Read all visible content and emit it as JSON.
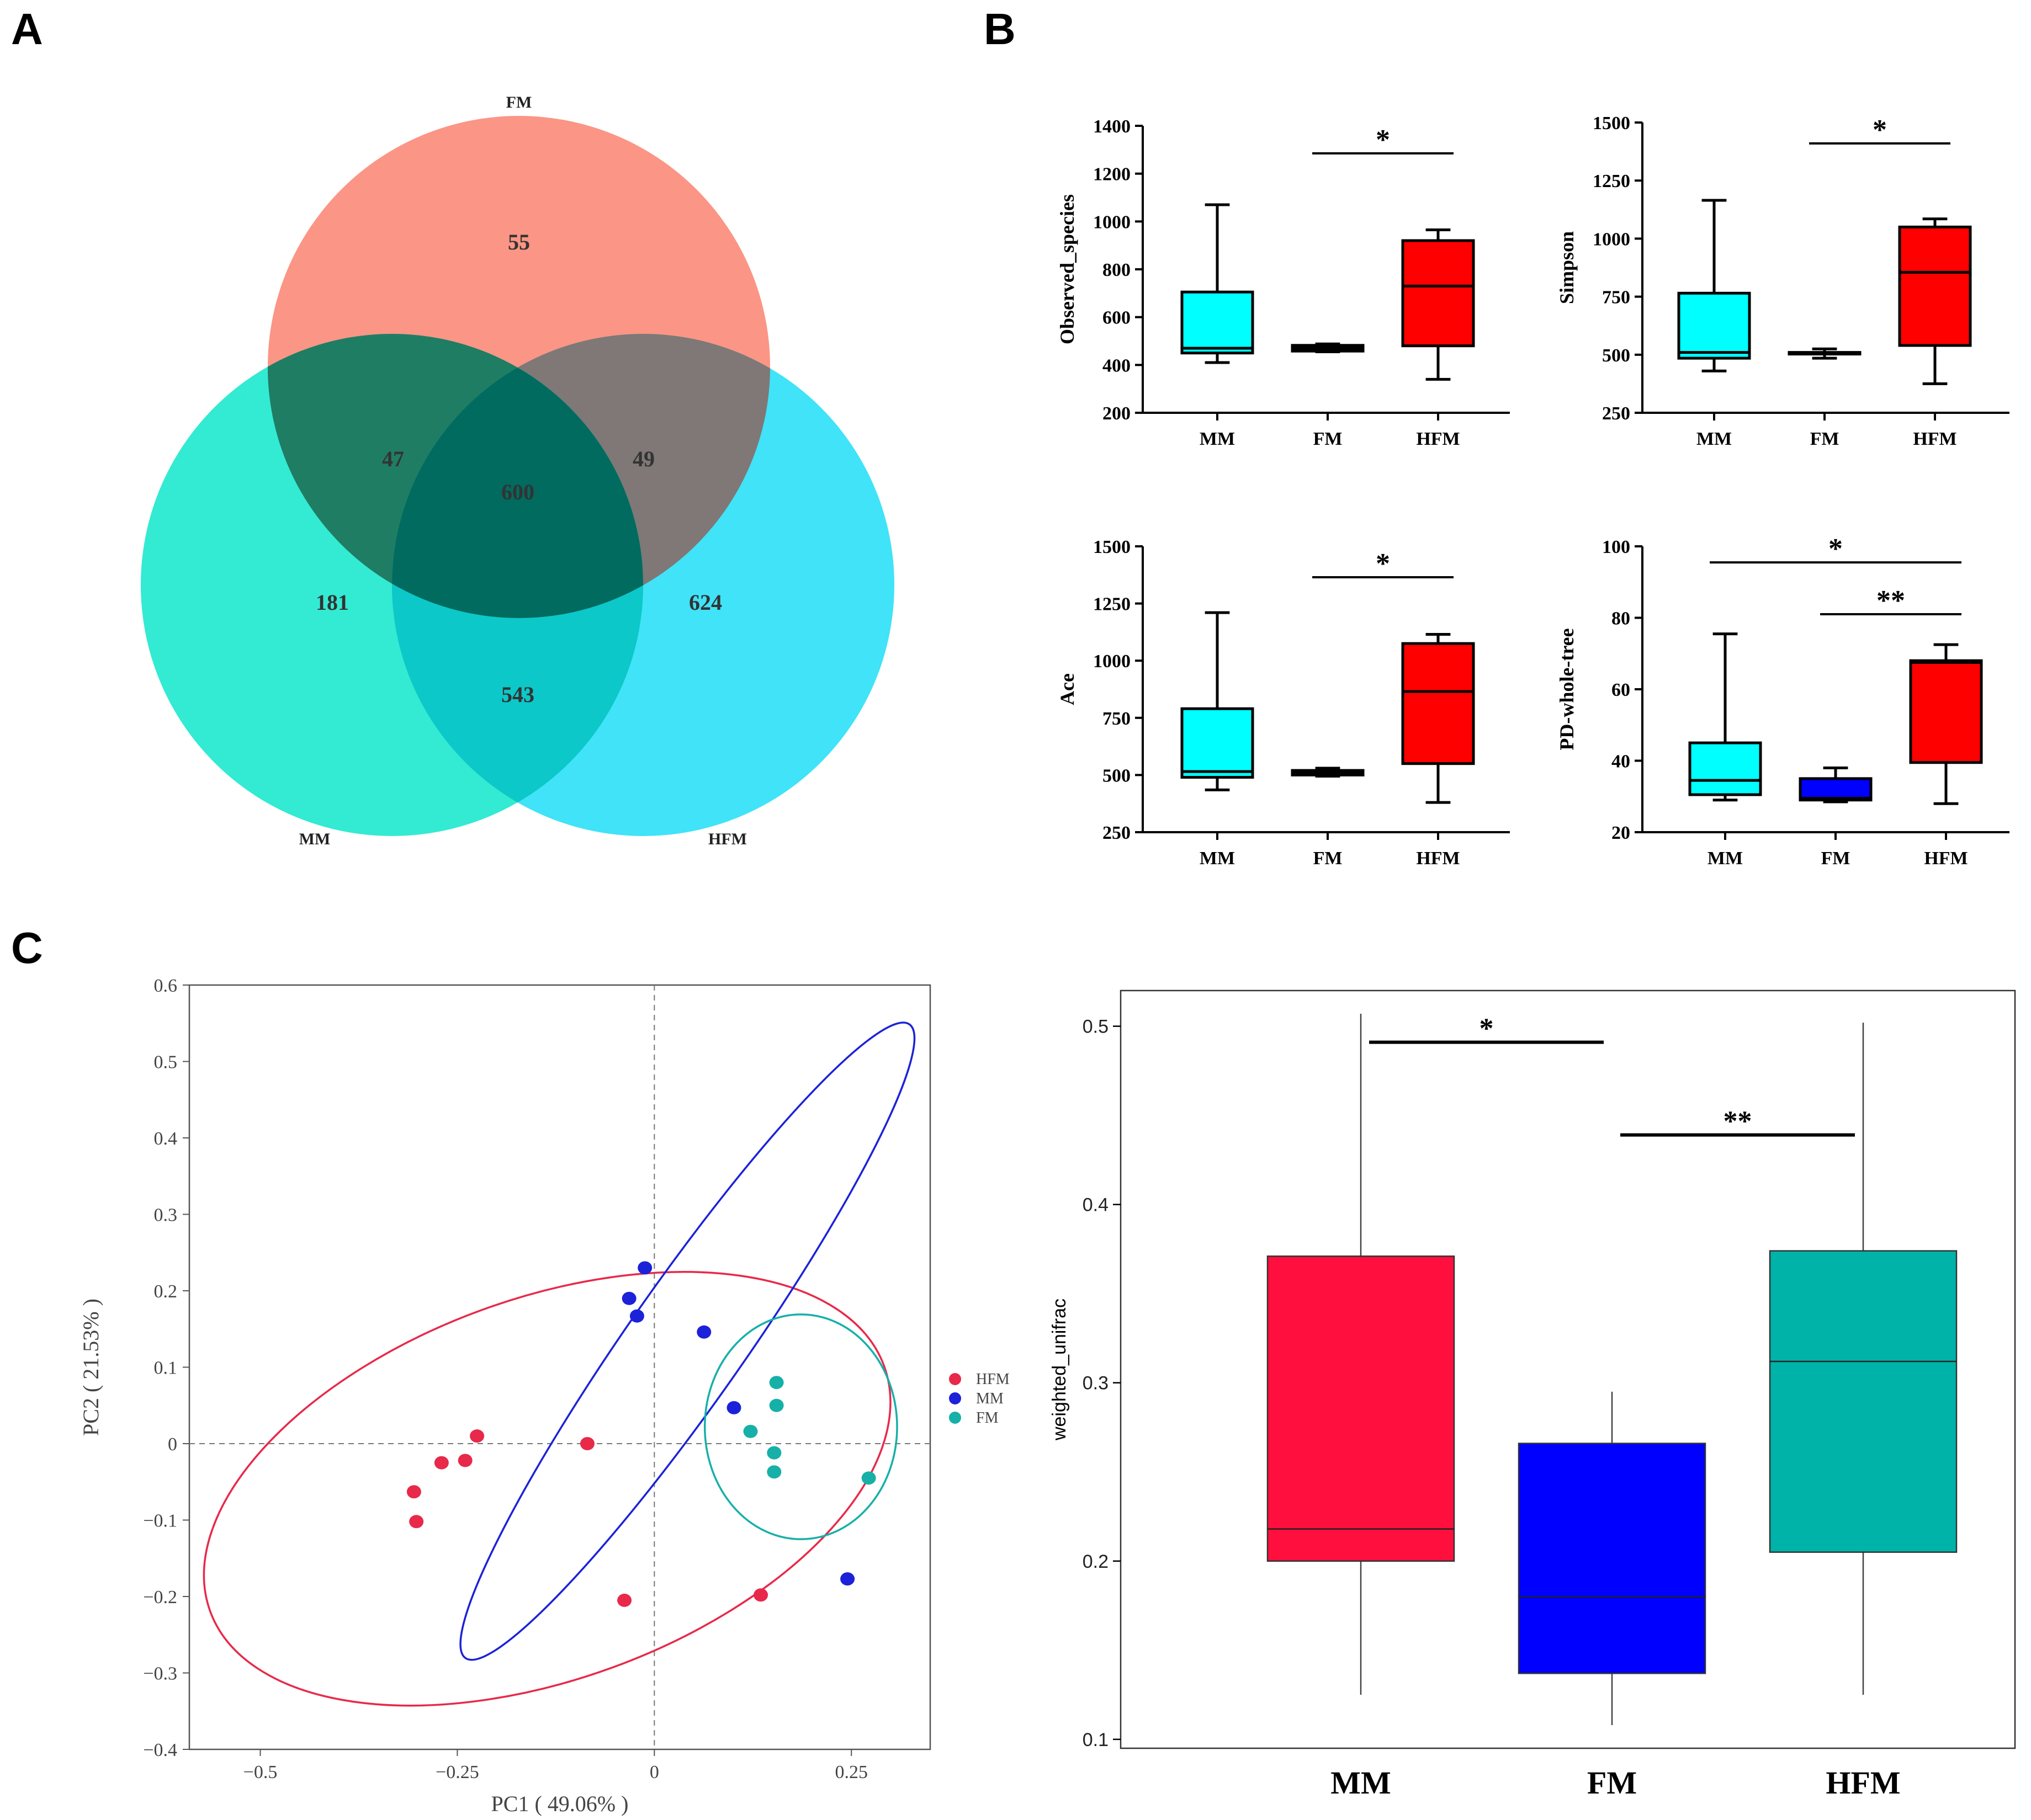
{
  "panels": {
    "A": "A",
    "B": "B",
    "C": "C"
  },
  "venn": {
    "sets": [
      "FM",
      "MM",
      "HFM"
    ],
    "colors": {
      "FM": "#fa7a66",
      "MM": "#00e5c8",
      "HFM": "#10dcf5"
    },
    "counts": {
      "fm_only": "55",
      "mm_only": "181",
      "hfm_only": "624",
      "fm_mm": "47",
      "fm_hfm": "49",
      "mm_hfm": "543",
      "all": "600"
    }
  },
  "chart_data": [
    {
      "type": "box",
      "id": "observed",
      "ylabel": "Observed_species",
      "categories": [
        "MM",
        "FM",
        "HFM"
      ],
      "ylim": [
        200,
        1400
      ],
      "yticks": [
        200,
        400,
        600,
        800,
        1000,
        1200,
        1400
      ],
      "colors": [
        "#00ffff",
        "#000000",
        "#ff0000"
      ],
      "boxes": [
        {
          "min": 410,
          "q1": 450,
          "median": 470,
          "q3": 705,
          "max": 1070
        },
        {
          "min": 455,
          "q1": 458,
          "median": 472,
          "q3": 482,
          "max": 488
        },
        {
          "min": 340,
          "q1": 480,
          "median": 730,
          "q3": 920,
          "max": 965
        }
      ],
      "significance": [
        {
          "from": 1,
          "to": 2,
          "label": "*",
          "y": 1285
        }
      ]
    },
    {
      "type": "box",
      "id": "simpson",
      "ylabel": "Simpson",
      "categories": [
        "MM",
        "FM",
        "HFM"
      ],
      "ylim": [
        250,
        1500
      ],
      "yticks": [
        250,
        500,
        750,
        1000,
        1250,
        1500
      ],
      "colors": [
        "#00ffff",
        "#ffffff",
        "#ff0000"
      ],
      "boxes": [
        {
          "min": 430,
          "q1": 485,
          "median": 510,
          "q3": 765,
          "max": 1165
        },
        {
          "min": 485,
          "q1": 505,
          "median": 508,
          "q3": 510,
          "max": 525
        },
        {
          "min": 375,
          "q1": 540,
          "median": 855,
          "q3": 1050,
          "max": 1085
        }
      ],
      "significance": [
        {
          "from": 1,
          "to": 2,
          "label": "*",
          "y": 1410
        }
      ]
    },
    {
      "type": "box",
      "id": "ace",
      "ylabel": "Ace",
      "categories": [
        "MM",
        "FM",
        "HFM"
      ],
      "ylim": [
        250,
        1500
      ],
      "yticks": [
        250,
        500,
        750,
        1000,
        1250,
        1500
      ],
      "colors": [
        "#00ffff",
        "#000000",
        "#ff0000"
      ],
      "boxes": [
        {
          "min": 435,
          "q1": 490,
          "median": 515,
          "q3": 790,
          "max": 1210
        },
        {
          "min": 495,
          "q1": 500,
          "median": 510,
          "q3": 520,
          "max": 530
        },
        {
          "min": 380,
          "q1": 550,
          "median": 865,
          "q3": 1075,
          "max": 1115
        }
      ],
      "significance": [
        {
          "from": 1,
          "to": 2,
          "label": "*",
          "y": 1365
        }
      ]
    },
    {
      "type": "box",
      "id": "pd",
      "ylabel": "PD-whole-tree",
      "categories": [
        "MM",
        "FM",
        "HFM"
      ],
      "ylim": [
        20,
        100
      ],
      "yticks": [
        20,
        40,
        60,
        80,
        100
      ],
      "colors": [
        "#00ffff",
        "#0000ff",
        "#ff0000"
      ],
      "boxes": [
        {
          "min": 29,
          "q1": 30.5,
          "median": 34.5,
          "q3": 45,
          "max": 75.5
        },
        {
          "min": 28.5,
          "q1": 29,
          "median": 29.5,
          "q3": 35,
          "max": 38
        },
        {
          "min": 28,
          "q1": 39.5,
          "median": 67.5,
          "q3": 68,
          "max": 72.5
        }
      ],
      "significance": [
        {
          "from": 0,
          "to": 2,
          "label": "*",
          "y": 95.5
        },
        {
          "from": 1,
          "to": 2,
          "label": "**",
          "y": 81
        }
      ]
    },
    {
      "type": "scatter",
      "id": "pcoa",
      "xlabel": "PC1 ( 49.06% )",
      "ylabel": "PC2 ( 21.53% )",
      "xlim": [
        -0.59,
        0.35
      ],
      "ylim": [
        -0.4,
        0.6
      ],
      "xticks": [
        -0.5,
        -0.25,
        0,
        0.25
      ],
      "xticklabels": [
        "−0.5",
        "−0.25",
        "0",
        "0.25"
      ],
      "yticks": [
        -0.4,
        -0.3,
        -0.2,
        -0.1,
        0,
        0.1,
        0.2,
        0.3,
        0.4,
        0.5,
        0.6
      ],
      "yticklabels": [
        "−0.4",
        "−0.3",
        "−0.2",
        "−0.1",
        "0",
        "0.1",
        "0.2",
        "0.3",
        "0.4",
        "0.5",
        "0.6"
      ],
      "series": [
        {
          "name": "HFM",
          "color": "#e8294a",
          "points": [
            [
              -0.305,
              -0.063
            ],
            [
              -0.302,
              -0.102
            ],
            [
              -0.27,
              -0.025
            ],
            [
              -0.24,
              -0.022
            ],
            [
              -0.225,
              0.01
            ],
            [
              -0.085,
              0.0
            ],
            [
              -0.038,
              -0.205
            ],
            [
              0.135,
              -0.198
            ]
          ],
          "ellipse": {
            "cx": -0.136,
            "cy": -0.059,
            "rx": 0.455,
            "ry": 0.249,
            "angle": -20
          }
        },
        {
          "name": "MM",
          "color": "#1c22d8",
          "points": [
            [
              -0.012,
              0.23
            ],
            [
              -0.032,
              0.19
            ],
            [
              -0.022,
              0.167
            ],
            [
              0.063,
              0.146
            ],
            [
              0.101,
              0.047
            ],
            [
              0.245,
              -0.177
            ]
          ],
          "ellipse": {
            "cx": 0.042,
            "cy": 0.134,
            "rx": 0.491,
            "ry": 0.076,
            "angle": -55
          }
        },
        {
          "name": "FM",
          "color": "#16b0a8",
          "points": [
            [
              0.155,
              0.08
            ],
            [
              0.155,
              0.05
            ],
            [
              0.122,
              0.016
            ],
            [
              0.152,
              -0.012
            ],
            [
              0.152,
              -0.037
            ],
            [
              0.272,
              -0.045
            ]
          ],
          "ellipse": {
            "cx": 0.186,
            "cy": 0.022,
            "rx": 0.122,
            "ry": 0.147,
            "angle": 0
          }
        }
      ]
    },
    {
      "type": "box",
      "id": "unifrac",
      "ylabel": "weighted_unifrac",
      "categories": [
        "MM",
        "FM",
        "HFM"
      ],
      "ylim": [
        0.095,
        0.52
      ],
      "yticks": [
        0.1,
        0.2,
        0.3,
        0.4,
        0.5
      ],
      "colors": [
        "#ff0f3d",
        "#0000ff",
        "#00b3a9"
      ],
      "boxes": [
        {
          "min": 0.125,
          "q1": 0.2,
          "median": 0.218,
          "q3": 0.371,
          "max": 0.507
        },
        {
          "min": 0.108,
          "q1": 0.137,
          "median": 0.18,
          "q3": 0.266,
          "max": 0.295
        },
        {
          "min": 0.125,
          "q1": 0.205,
          "median": 0.312,
          "q3": 0.374,
          "max": 0.502
        }
      ],
      "significance": [
        {
          "from": 0,
          "to": 1,
          "label": "*",
          "y": 0.491
        },
        {
          "from": 1,
          "to": 2,
          "label": "**",
          "y": 0.439
        }
      ]
    }
  ]
}
